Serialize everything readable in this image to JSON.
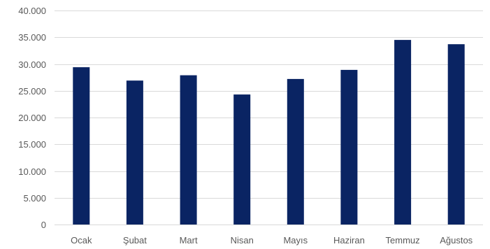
{
  "chart_data": {
    "type": "bar",
    "title": "",
    "xlabel": "",
    "ylabel": "",
    "categories": [
      "Ocak",
      "Şubat",
      "Mart",
      "Nisan",
      "Mayıs",
      "Haziran",
      "Temmuz",
      "Ağustos"
    ],
    "values": [
      29400,
      26900,
      27900,
      24300,
      27200,
      28900,
      34500,
      33700
    ],
    "ylim": [
      0,
      40000
    ],
    "yticks": [
      0,
      5000,
      10000,
      15000,
      20000,
      25000,
      30000,
      35000,
      40000
    ],
    "ytick_labels": [
      "0",
      "5.000",
      "10.000",
      "15.000",
      "20.000",
      "25.000",
      "30.000",
      "35.000",
      "40.000"
    ],
    "grid": true,
    "legend": "none",
    "bar_color": "#0a2463",
    "grid_color": "#d9d9d9",
    "label_color": "#595959"
  }
}
